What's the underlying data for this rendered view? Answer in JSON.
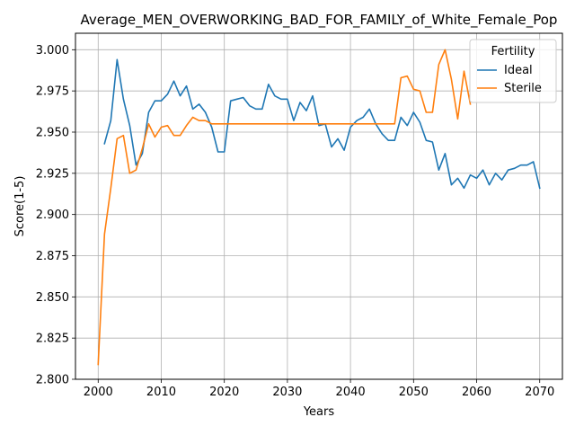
{
  "chart_data": {
    "type": "line",
    "title": "Average_MEN_OVERWORKING_BAD_FOR_FAMILY_of_White_Female_Pop",
    "xlabel": "Years",
    "ylabel": "Score(1-5)",
    "xlim": [
      1996.4,
      2073.6
    ],
    "ylim": [
      2.8,
      3.01
    ],
    "xticks": [
      2000,
      2010,
      2020,
      2030,
      2040,
      2050,
      2060,
      2070
    ],
    "yticks": [
      2.8,
      2.825,
      2.85,
      2.875,
      2.9,
      2.925,
      2.95,
      2.975,
      3.0
    ],
    "ytick_labels": [
      "2.800",
      "2.825",
      "2.850",
      "2.875",
      "2.900",
      "2.925",
      "2.950",
      "2.975",
      "3.000"
    ],
    "grid": true,
    "legend": {
      "title": "Fertility",
      "position": "top-right"
    },
    "series": [
      {
        "name": "Ideal",
        "color": "#1f77b4",
        "x": [
          2001,
          2002,
          2003,
          2004,
          2005,
          2006,
          2007,
          2008,
          2009,
          2010,
          2011,
          2012,
          2013,
          2014,
          2015,
          2016,
          2017,
          2018,
          2019,
          2020,
          2021,
          2022,
          2023,
          2024,
          2025,
          2026,
          2027,
          2028,
          2029,
          2030,
          2031,
          2032,
          2033,
          2034,
          2035,
          2036,
          2037,
          2038,
          2039,
          2040,
          2041,
          2042,
          2043,
          2044,
          2045,
          2046,
          2047,
          2048,
          2049,
          2050,
          2051,
          2052,
          2053,
          2054,
          2055,
          2056,
          2057,
          2058,
          2059,
          2060,
          2061,
          2062,
          2063,
          2064,
          2065,
          2066,
          2067,
          2068,
          2069,
          2070
        ],
        "y": [
          2.943,
          2.957,
          2.994,
          2.97,
          2.954,
          2.93,
          2.937,
          2.962,
          2.969,
          2.969,
          2.973,
          2.981,
          2.972,
          2.978,
          2.964,
          2.967,
          2.962,
          2.953,
          2.938,
          2.938,
          2.969,
          2.97,
          2.971,
          2.966,
          2.964,
          2.964,
          2.979,
          2.972,
          2.97,
          2.97,
          2.957,
          2.968,
          2.963,
          2.972,
          2.954,
          2.955,
          2.941,
          2.946,
          2.939,
          2.953,
          2.957,
          2.959,
          2.964,
          2.955,
          2.949,
          2.945,
          2.945,
          2.959,
          2.954,
          2.962,
          2.956,
          2.945,
          2.944,
          2.927,
          2.937,
          2.918,
          2.922,
          2.916,
          2.924,
          2.922,
          2.927,
          2.918,
          2.925,
          2.921,
          2.927,
          2.928,
          2.93,
          2.93,
          2.932,
          2.916
        ]
      },
      {
        "name": "Sterile",
        "color": "#ff7f0e",
        "x": [
          2000,
          2001,
          2002,
          2003,
          2004,
          2005,
          2006,
          2007,
          2008,
          2009,
          2010,
          2011,
          2012,
          2013,
          2014,
          2015,
          2016,
          2017,
          2018,
          2019,
          2020,
          2021,
          2022,
          2023,
          2024,
          2025,
          2026,
          2027,
          2028,
          2029,
          2030,
          2031,
          2032,
          2033,
          2034,
          2035,
          2036,
          2037,
          2038,
          2039,
          2040,
          2041,
          2042,
          2043,
          2044,
          2045,
          2046,
          2047,
          2048,
          2049,
          2050,
          2051,
          2052,
          2053,
          2054,
          2055,
          2056,
          2057,
          2058,
          2059
        ],
        "y": [
          2.809,
          2.888,
          2.916,
          2.946,
          2.948,
          2.925,
          2.927,
          2.94,
          2.955,
          2.947,
          2.953,
          2.954,
          2.948,
          2.948,
          2.954,
          2.959,
          2.957,
          2.957,
          2.955,
          2.955,
          2.955,
          2.955,
          2.955,
          2.955,
          2.955,
          2.955,
          2.955,
          2.955,
          2.955,
          2.955,
          2.955,
          2.955,
          2.955,
          2.955,
          2.955,
          2.955,
          2.955,
          2.955,
          2.955,
          2.955,
          2.955,
          2.955,
          2.955,
          2.955,
          2.955,
          2.955,
          2.955,
          2.955,
          2.983,
          2.984,
          2.976,
          2.975,
          2.962,
          2.962,
          2.991,
          3.0,
          2.982,
          2.958,
          2.987,
          2.967
        ]
      }
    ]
  }
}
